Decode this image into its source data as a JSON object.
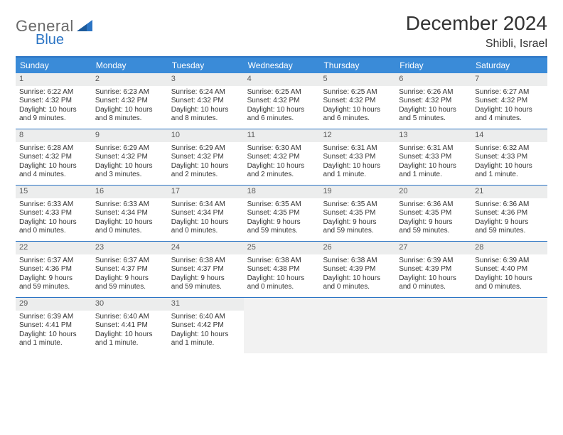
{
  "logo": {
    "word1": "General",
    "word2": "Blue",
    "triangle_color": "#2b74c4"
  },
  "title": "December 2024",
  "location": "Shibli, Israel",
  "colors": {
    "header_bar": "#3a8bd8",
    "rule": "#2b74c4",
    "daynum_bg": "#eceded",
    "empty_bg": "#f2f2f2"
  },
  "dow": [
    "Sunday",
    "Monday",
    "Tuesday",
    "Wednesday",
    "Thursday",
    "Friday",
    "Saturday"
  ],
  "weeks": [
    [
      {
        "n": "1",
        "sr": "Sunrise: 6:22 AM",
        "ss": "Sunset: 4:32 PM",
        "d1": "Daylight: 10 hours",
        "d2": "and 9 minutes."
      },
      {
        "n": "2",
        "sr": "Sunrise: 6:23 AM",
        "ss": "Sunset: 4:32 PM",
        "d1": "Daylight: 10 hours",
        "d2": "and 8 minutes."
      },
      {
        "n": "3",
        "sr": "Sunrise: 6:24 AM",
        "ss": "Sunset: 4:32 PM",
        "d1": "Daylight: 10 hours",
        "d2": "and 8 minutes."
      },
      {
        "n": "4",
        "sr": "Sunrise: 6:25 AM",
        "ss": "Sunset: 4:32 PM",
        "d1": "Daylight: 10 hours",
        "d2": "and 6 minutes."
      },
      {
        "n": "5",
        "sr": "Sunrise: 6:25 AM",
        "ss": "Sunset: 4:32 PM",
        "d1": "Daylight: 10 hours",
        "d2": "and 6 minutes."
      },
      {
        "n": "6",
        "sr": "Sunrise: 6:26 AM",
        "ss": "Sunset: 4:32 PM",
        "d1": "Daylight: 10 hours",
        "d2": "and 5 minutes."
      },
      {
        "n": "7",
        "sr": "Sunrise: 6:27 AM",
        "ss": "Sunset: 4:32 PM",
        "d1": "Daylight: 10 hours",
        "d2": "and 4 minutes."
      }
    ],
    [
      {
        "n": "8",
        "sr": "Sunrise: 6:28 AM",
        "ss": "Sunset: 4:32 PM",
        "d1": "Daylight: 10 hours",
        "d2": "and 4 minutes."
      },
      {
        "n": "9",
        "sr": "Sunrise: 6:29 AM",
        "ss": "Sunset: 4:32 PM",
        "d1": "Daylight: 10 hours",
        "d2": "and 3 minutes."
      },
      {
        "n": "10",
        "sr": "Sunrise: 6:29 AM",
        "ss": "Sunset: 4:32 PM",
        "d1": "Daylight: 10 hours",
        "d2": "and 2 minutes."
      },
      {
        "n": "11",
        "sr": "Sunrise: 6:30 AM",
        "ss": "Sunset: 4:32 PM",
        "d1": "Daylight: 10 hours",
        "d2": "and 2 minutes."
      },
      {
        "n": "12",
        "sr": "Sunrise: 6:31 AM",
        "ss": "Sunset: 4:33 PM",
        "d1": "Daylight: 10 hours",
        "d2": "and 1 minute."
      },
      {
        "n": "13",
        "sr": "Sunrise: 6:31 AM",
        "ss": "Sunset: 4:33 PM",
        "d1": "Daylight: 10 hours",
        "d2": "and 1 minute."
      },
      {
        "n": "14",
        "sr": "Sunrise: 6:32 AM",
        "ss": "Sunset: 4:33 PM",
        "d1": "Daylight: 10 hours",
        "d2": "and 1 minute."
      }
    ],
    [
      {
        "n": "15",
        "sr": "Sunrise: 6:33 AM",
        "ss": "Sunset: 4:33 PM",
        "d1": "Daylight: 10 hours",
        "d2": "and 0 minutes."
      },
      {
        "n": "16",
        "sr": "Sunrise: 6:33 AM",
        "ss": "Sunset: 4:34 PM",
        "d1": "Daylight: 10 hours",
        "d2": "and 0 minutes."
      },
      {
        "n": "17",
        "sr": "Sunrise: 6:34 AM",
        "ss": "Sunset: 4:34 PM",
        "d1": "Daylight: 10 hours",
        "d2": "and 0 minutes."
      },
      {
        "n": "18",
        "sr": "Sunrise: 6:35 AM",
        "ss": "Sunset: 4:35 PM",
        "d1": "Daylight: 9 hours",
        "d2": "and 59 minutes."
      },
      {
        "n": "19",
        "sr": "Sunrise: 6:35 AM",
        "ss": "Sunset: 4:35 PM",
        "d1": "Daylight: 9 hours",
        "d2": "and 59 minutes."
      },
      {
        "n": "20",
        "sr": "Sunrise: 6:36 AM",
        "ss": "Sunset: 4:35 PM",
        "d1": "Daylight: 9 hours",
        "d2": "and 59 minutes."
      },
      {
        "n": "21",
        "sr": "Sunrise: 6:36 AM",
        "ss": "Sunset: 4:36 PM",
        "d1": "Daylight: 9 hours",
        "d2": "and 59 minutes."
      }
    ],
    [
      {
        "n": "22",
        "sr": "Sunrise: 6:37 AM",
        "ss": "Sunset: 4:36 PM",
        "d1": "Daylight: 9 hours",
        "d2": "and 59 minutes."
      },
      {
        "n": "23",
        "sr": "Sunrise: 6:37 AM",
        "ss": "Sunset: 4:37 PM",
        "d1": "Daylight: 9 hours",
        "d2": "and 59 minutes."
      },
      {
        "n": "24",
        "sr": "Sunrise: 6:38 AM",
        "ss": "Sunset: 4:37 PM",
        "d1": "Daylight: 9 hours",
        "d2": "and 59 minutes."
      },
      {
        "n": "25",
        "sr": "Sunrise: 6:38 AM",
        "ss": "Sunset: 4:38 PM",
        "d1": "Daylight: 10 hours",
        "d2": "and 0 minutes."
      },
      {
        "n": "26",
        "sr": "Sunrise: 6:38 AM",
        "ss": "Sunset: 4:39 PM",
        "d1": "Daylight: 10 hours",
        "d2": "and 0 minutes."
      },
      {
        "n": "27",
        "sr": "Sunrise: 6:39 AM",
        "ss": "Sunset: 4:39 PM",
        "d1": "Daylight: 10 hours",
        "d2": "and 0 minutes."
      },
      {
        "n": "28",
        "sr": "Sunrise: 6:39 AM",
        "ss": "Sunset: 4:40 PM",
        "d1": "Daylight: 10 hours",
        "d2": "and 0 minutes."
      }
    ],
    [
      {
        "n": "29",
        "sr": "Sunrise: 6:39 AM",
        "ss": "Sunset: 4:41 PM",
        "d1": "Daylight: 10 hours",
        "d2": "and 1 minute."
      },
      {
        "n": "30",
        "sr": "Sunrise: 6:40 AM",
        "ss": "Sunset: 4:41 PM",
        "d1": "Daylight: 10 hours",
        "d2": "and 1 minute."
      },
      {
        "n": "31",
        "sr": "Sunrise: 6:40 AM",
        "ss": "Sunset: 4:42 PM",
        "d1": "Daylight: 10 hours",
        "d2": "and 1 minute."
      },
      null,
      null,
      null,
      null
    ]
  ]
}
